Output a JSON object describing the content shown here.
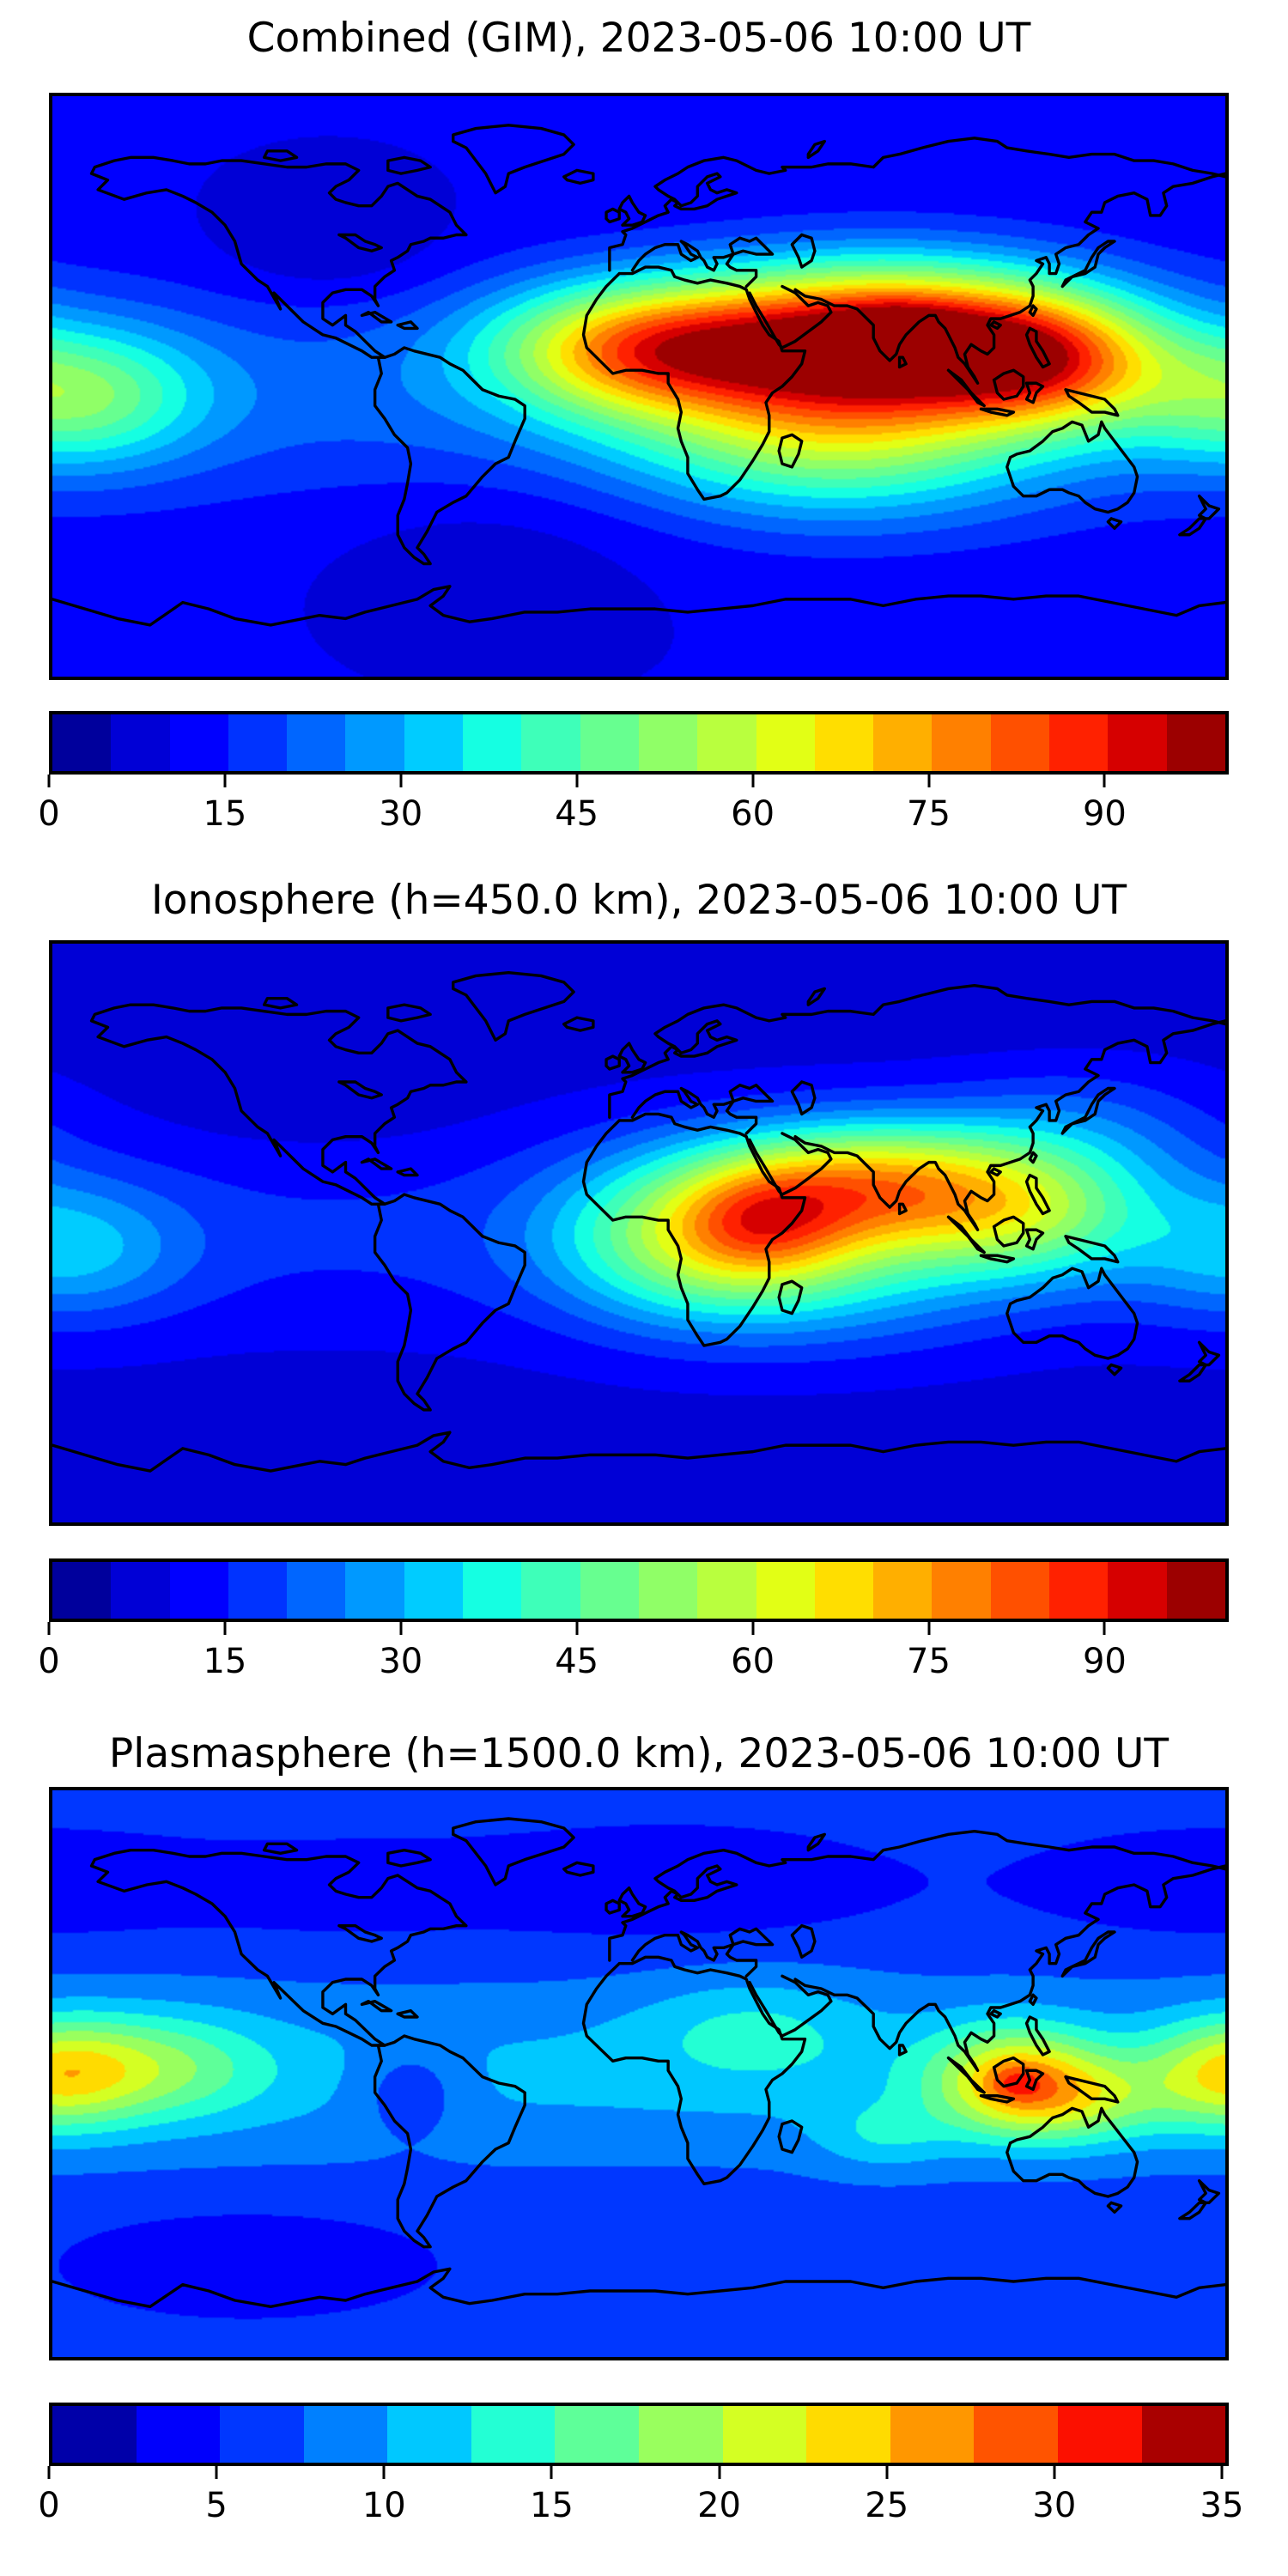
{
  "figure": {
    "background": "#ffffff",
    "colormap": "jet",
    "projection": "equirectangular",
    "lon_range": [
      -180,
      180
    ],
    "lat_range": [
      -90,
      90
    ]
  },
  "chart_data": [
    {
      "type": "heatmap",
      "subtype": "filled_contour_world_map",
      "title": "Combined (GIM), 2023-05-06 10:00 UT",
      "levels": {
        "vmin": 0,
        "vmax": 100,
        "step": 5
      },
      "colorbar_ticks": [
        0,
        15,
        30,
        45,
        60,
        75,
        90
      ],
      "colorbar_orientation": "horizontal",
      "grid": false,
      "legend": "none",
      "field": {
        "base": 10,
        "peak_value": 100,
        "peak_location_lonlat": [
          78,
          17
        ],
        "blobs": [
          [
            75,
            15,
            80,
            42,
            16
          ],
          [
            80,
            17,
            10,
            12,
            6
          ],
          [
            0,
            12,
            50,
            32,
            14
          ],
          [
            60,
            -15,
            35,
            45,
            18
          ],
          [
            125,
            8,
            40,
            25,
            14
          ],
          [
            -172,
            -3,
            30,
            26,
            15
          ],
          [
            0,
            -2,
            12,
            500,
            25
          ],
          [
            -95,
            42,
            -6,
            25,
            12
          ],
          [
            -40,
            -45,
            -4,
            40,
            15
          ]
        ]
      }
    },
    {
      "type": "heatmap",
      "subtype": "filled_contour_world_map",
      "title": "Ionosphere  (h=450.0 km), 2023-05-06 10:00 UT",
      "levels": {
        "vmin": 0,
        "vmax": 100,
        "step": 5
      },
      "colorbar_ticks": [
        0,
        15,
        30,
        45,
        60,
        75,
        90
      ],
      "colorbar_orientation": "horizontal",
      "grid": false,
      "legend": "none",
      "field": {
        "base": 8,
        "peak_value": 75,
        "peak_location_lonlat": [
          72,
          15
        ],
        "blobs": [
          [
            72,
            15,
            54,
            35,
            14
          ],
          [
            38,
            3,
            20,
            18,
            12
          ],
          [
            15,
            0,
            30,
            30,
            18
          ],
          [
            55,
            -12,
            20,
            40,
            16
          ],
          [
            120,
            5,
            25,
            25,
            14
          ],
          [
            135,
            30,
            12,
            30,
            15
          ],
          [
            -175,
            -5,
            18,
            25,
            15
          ],
          [
            0,
            0,
            8,
            500,
            22
          ],
          [
            -100,
            45,
            -3,
            30,
            14
          ],
          [
            120,
            75,
            -3,
            60,
            10
          ]
        ]
      }
    },
    {
      "type": "heatmap",
      "subtype": "filled_contour_world_map",
      "title": "Plasmasphere (h=1500.0 km), 2023-05-06 10:00 UT",
      "levels": {
        "vmin": 0,
        "vmax": 35,
        "step": 2.5
      },
      "colorbar_ticks": [
        0,
        5,
        10,
        15,
        20,
        25,
        30,
        35
      ],
      "colorbar_orientation": "horizontal",
      "grid": false,
      "legend": "none",
      "field": {
        "base": 6,
        "peak_value": 31,
        "peak_location_lonlat": [
          116,
          -3
        ],
        "blobs": [
          [
            115,
            -2,
            13,
            18,
            12
          ],
          [
            116,
            -3,
            4,
            6,
            4
          ],
          [
            135,
            -8,
            8,
            20,
            10
          ],
          [
            -178,
            0,
            12,
            18,
            12
          ],
          [
            -145,
            2,
            7,
            22,
            12
          ],
          [
            35,
            15,
            4,
            25,
            12
          ],
          [
            75,
            -20,
            4,
            15,
            8
          ],
          [
            0,
            0,
            4.5,
            500,
            20
          ],
          [
            10,
            60,
            -3.5,
            45,
            12
          ],
          [
            175,
            60,
            -3,
            40,
            12
          ],
          [
            -90,
            58,
            -2,
            35,
            12
          ],
          [
            -70,
            -5,
            -4,
            12,
            10
          ],
          [
            -120,
            -60,
            -3,
            40,
            12
          ]
        ]
      }
    }
  ]
}
